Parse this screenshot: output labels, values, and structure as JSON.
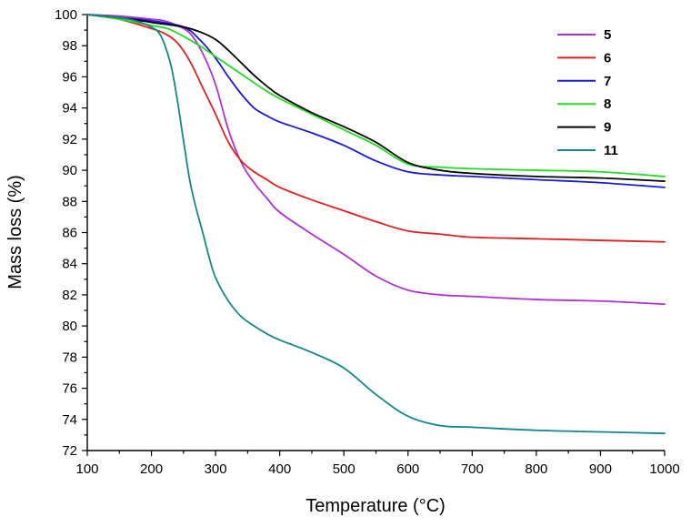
{
  "chart_data": {
    "type": "line",
    "title": "",
    "xlabel": "Temperature (°C)",
    "ylabel": "Mass loss (%)",
    "xlim": [
      100,
      1000
    ],
    "ylim": [
      72,
      100
    ],
    "xticks": [
      "100",
      "200",
      "300",
      "400",
      "500",
      "600",
      "700",
      "800",
      "900",
      "1000"
    ],
    "yticks": [
      "72",
      "74",
      "76",
      "78",
      "80",
      "82",
      "84",
      "86",
      "88",
      "90",
      "92",
      "94",
      "96",
      "98",
      "100"
    ],
    "grid": false,
    "legend_position": "top-right",
    "series": [
      {
        "name": "5",
        "color": "#b030d0",
        "x": [
          100,
          150,
          200,
          220,
          240,
          260,
          280,
          300,
          320,
          340,
          360,
          380,
          400,
          450,
          500,
          550,
          600,
          650,
          700,
          800,
          900,
          1000
        ],
        "y": [
          100,
          99.9,
          99.7,
          99.6,
          99.3,
          98.8,
          97.5,
          95.5,
          92.6,
          90.5,
          89.2,
          88.2,
          87.3,
          85.9,
          84.6,
          83.2,
          82.3,
          82.0,
          81.9,
          81.7,
          81.6,
          81.4
        ]
      },
      {
        "name": "6",
        "color": "#e02020",
        "x": [
          100,
          150,
          200,
          220,
          240,
          260,
          280,
          300,
          320,
          340,
          360,
          380,
          400,
          450,
          500,
          550,
          600,
          650,
          700,
          800,
          900,
          1000
        ],
        "y": [
          100,
          99.7,
          99.1,
          98.8,
          98.2,
          97.0,
          95.3,
          93.6,
          91.8,
          90.6,
          89.9,
          89.4,
          88.9,
          88.1,
          87.4,
          86.7,
          86.1,
          85.9,
          85.7,
          85.6,
          85.5,
          85.4
        ]
      },
      {
        "name": "7",
        "color": "#1a1ad8",
        "x": [
          100,
          150,
          200,
          250,
          275,
          300,
          320,
          340,
          360,
          380,
          400,
          450,
          500,
          550,
          600,
          650,
          700,
          800,
          900,
          1000
        ],
        "y": [
          100,
          99.8,
          99.6,
          99.2,
          98.4,
          97.2,
          96.0,
          94.9,
          94.0,
          93.5,
          93.1,
          92.4,
          91.6,
          90.6,
          89.9,
          89.7,
          89.6,
          89.4,
          89.2,
          88.9
        ]
      },
      {
        "name": "8",
        "color": "#22dd22",
        "x": [
          100,
          150,
          200,
          225,
          250,
          275,
          300,
          325,
          350,
          375,
          400,
          450,
          500,
          550,
          600,
          650,
          700,
          800,
          900,
          1000
        ],
        "y": [
          100,
          99.7,
          99.3,
          99.1,
          98.6,
          98.0,
          97.3,
          96.6,
          95.9,
          95.2,
          94.6,
          93.6,
          92.6,
          91.6,
          90.4,
          90.2,
          90.1,
          90.0,
          89.9,
          89.6
        ]
      },
      {
        "name": "9",
        "color": "#000000",
        "x": [
          100,
          150,
          200,
          250,
          275,
          300,
          320,
          340,
          360,
          380,
          400,
          450,
          500,
          550,
          600,
          650,
          700,
          800,
          900,
          1000
        ],
        "y": [
          100,
          99.8,
          99.5,
          99.2,
          98.9,
          98.4,
          97.7,
          96.9,
          96.1,
          95.4,
          94.8,
          93.7,
          92.8,
          91.8,
          90.5,
          90.0,
          89.8,
          89.6,
          89.5,
          89.3
        ]
      },
      {
        "name": "11",
        "color": "#16868a",
        "x": [
          100,
          150,
          175,
          200,
          215,
          230,
          240,
          250,
          260,
          270,
          280,
          290,
          300,
          320,
          340,
          360,
          380,
          400,
          450,
          500,
          550,
          600,
          650,
          700,
          800,
          900,
          1000
        ],
        "y": [
          100,
          99.8,
          99.6,
          99.2,
          98.6,
          96.8,
          94.6,
          91.9,
          89.3,
          87.5,
          86.0,
          84.4,
          83.1,
          81.6,
          80.6,
          80.0,
          79.5,
          79.1,
          78.3,
          77.3,
          75.6,
          74.2,
          73.6,
          73.5,
          73.3,
          73.2,
          73.1
        ]
      }
    ]
  }
}
